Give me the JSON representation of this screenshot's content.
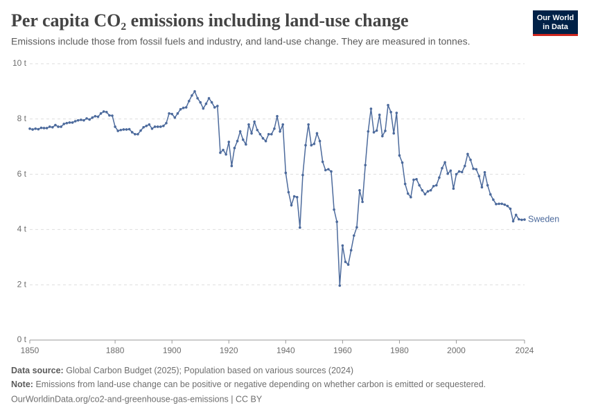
{
  "logo": {
    "line1": "Our World",
    "line2": "in Data"
  },
  "chart_data": {
    "type": "line",
    "title": "Per capita CO₂ emissions including land-use change",
    "subtitle": "Emissions include those from fossil fuels and industry, and land-use change. They are measured in tonnes.",
    "x": [
      1850,
      1851,
      1852,
      1853,
      1854,
      1855,
      1856,
      1857,
      1858,
      1859,
      1860,
      1861,
      1862,
      1863,
      1864,
      1865,
      1866,
      1867,
      1868,
      1869,
      1870,
      1871,
      1872,
      1873,
      1874,
      1875,
      1876,
      1877,
      1878,
      1879,
      1880,
      1881,
      1882,
      1883,
      1884,
      1885,
      1886,
      1887,
      1888,
      1889,
      1890,
      1891,
      1892,
      1893,
      1894,
      1895,
      1896,
      1897,
      1898,
      1899,
      1900,
      1901,
      1902,
      1903,
      1904,
      1905,
      1906,
      1907,
      1908,
      1909,
      1910,
      1911,
      1912,
      1913,
      1914,
      1915,
      1916,
      1917,
      1918,
      1919,
      1920,
      1921,
      1922,
      1923,
      1924,
      1925,
      1926,
      1927,
      1928,
      1929,
      1930,
      1931,
      1932,
      1933,
      1934,
      1935,
      1936,
      1937,
      1938,
      1939,
      1940,
      1941,
      1942,
      1943,
      1944,
      1945,
      1946,
      1947,
      1948,
      1949,
      1950,
      1951,
      1952,
      1953,
      1954,
      1955,
      1956,
      1957,
      1958,
      1959,
      1960,
      1961,
      1962,
      1963,
      1964,
      1965,
      1966,
      1967,
      1968,
      1969,
      1970,
      1971,
      1972,
      1973,
      1974,
      1975,
      1976,
      1977,
      1978,
      1979,
      1980,
      1981,
      1982,
      1983,
      1984,
      1985,
      1986,
      1987,
      1988,
      1989,
      1990,
      1991,
      1992,
      1993,
      1994,
      1995,
      1996,
      1997,
      1998,
      1999,
      2000,
      2001,
      2002,
      2003,
      2004,
      2005,
      2006,
      2007,
      2008,
      2009,
      2010,
      2011,
      2012,
      2013,
      2014,
      2015,
      2016,
      2017,
      2018,
      2019,
      2020,
      2021,
      2022,
      2023,
      2024
    ],
    "series": [
      {
        "name": "Sweden",
        "color": "#4c6a9c",
        "values": [
          7.65,
          7.62,
          7.65,
          7.63,
          7.68,
          7.67,
          7.67,
          7.72,
          7.7,
          7.78,
          7.72,
          7.72,
          7.82,
          7.85,
          7.87,
          7.87,
          7.92,
          7.95,
          7.97,
          7.95,
          8.02,
          7.98,
          8.05,
          8.1,
          8.08,
          8.2,
          8.27,
          8.25,
          8.13,
          8.12,
          7.72,
          7.57,
          7.6,
          7.62,
          7.62,
          7.63,
          7.52,
          7.45,
          7.45,
          7.58,
          7.7,
          7.75,
          7.8,
          7.65,
          7.72,
          7.72,
          7.72,
          7.75,
          7.85,
          8.2,
          8.18,
          8.05,
          8.2,
          8.35,
          8.4,
          8.42,
          8.65,
          8.85,
          9.0,
          8.75,
          8.6,
          8.38,
          8.55,
          8.75,
          8.6,
          8.42,
          8.47,
          6.78,
          6.88,
          6.72,
          7.17,
          6.3,
          6.95,
          7.2,
          7.55,
          7.25,
          7.08,
          7.8,
          7.48,
          7.9,
          7.6,
          7.45,
          7.3,
          7.2,
          7.45,
          7.45,
          7.65,
          8.1,
          7.55,
          7.8,
          6.05,
          5.35,
          4.88,
          5.2,
          5.17,
          4.07,
          5.97,
          7.05,
          7.8,
          7.05,
          7.1,
          7.48,
          7.2,
          6.45,
          6.15,
          6.18,
          6.1,
          4.72,
          4.28,
          1.97,
          3.42,
          2.83,
          2.73,
          3.25,
          3.78,
          4.08,
          5.42,
          5.0,
          6.33,
          7.55,
          8.37,
          7.52,
          7.58,
          8.15,
          7.38,
          7.57,
          8.5,
          8.25,
          7.48,
          8.22,
          6.68,
          6.42,
          5.65,
          5.3,
          5.17,
          5.8,
          5.82,
          5.6,
          5.42,
          5.28,
          5.38,
          5.42,
          5.57,
          5.6,
          5.88,
          6.22,
          6.43,
          6.02,
          6.13,
          5.48,
          6.0,
          6.1,
          6.08,
          6.3,
          6.73,
          6.52,
          6.2,
          6.18,
          5.93,
          5.53,
          6.07,
          5.6,
          5.27,
          5.08,
          4.92,
          4.93,
          4.93,
          4.9,
          4.85,
          4.75,
          4.3,
          4.53,
          4.37,
          4.35,
          4.36
        ]
      }
    ],
    "xlim": [
      1850,
      2024
    ],
    "xticks": [
      1850,
      1880,
      1900,
      1920,
      1940,
      1960,
      1980,
      2000,
      2024
    ],
    "ylim": [
      0,
      10
    ],
    "yticks": [
      {
        "value": 0,
        "label": "0 t"
      },
      {
        "value": 2,
        "label": "2 t"
      },
      {
        "value": 4,
        "label": "4 t"
      },
      {
        "value": 6,
        "label": "6 t"
      },
      {
        "value": 8,
        "label": "8 t"
      },
      {
        "value": 10,
        "label": "10 t"
      }
    ],
    "grid": true
  },
  "footer": {
    "source_label": "Data source:",
    "source": "Global Carbon Budget (2025); Population based on various sources (2024)",
    "note_label": "Note:",
    "note": "Emissions from land-use change can be positive or negative depending on whether carbon is emitted or sequestered.",
    "url": "OurWorldinData.org/co2-and-greenhouse-gas-emissions | CC BY"
  }
}
